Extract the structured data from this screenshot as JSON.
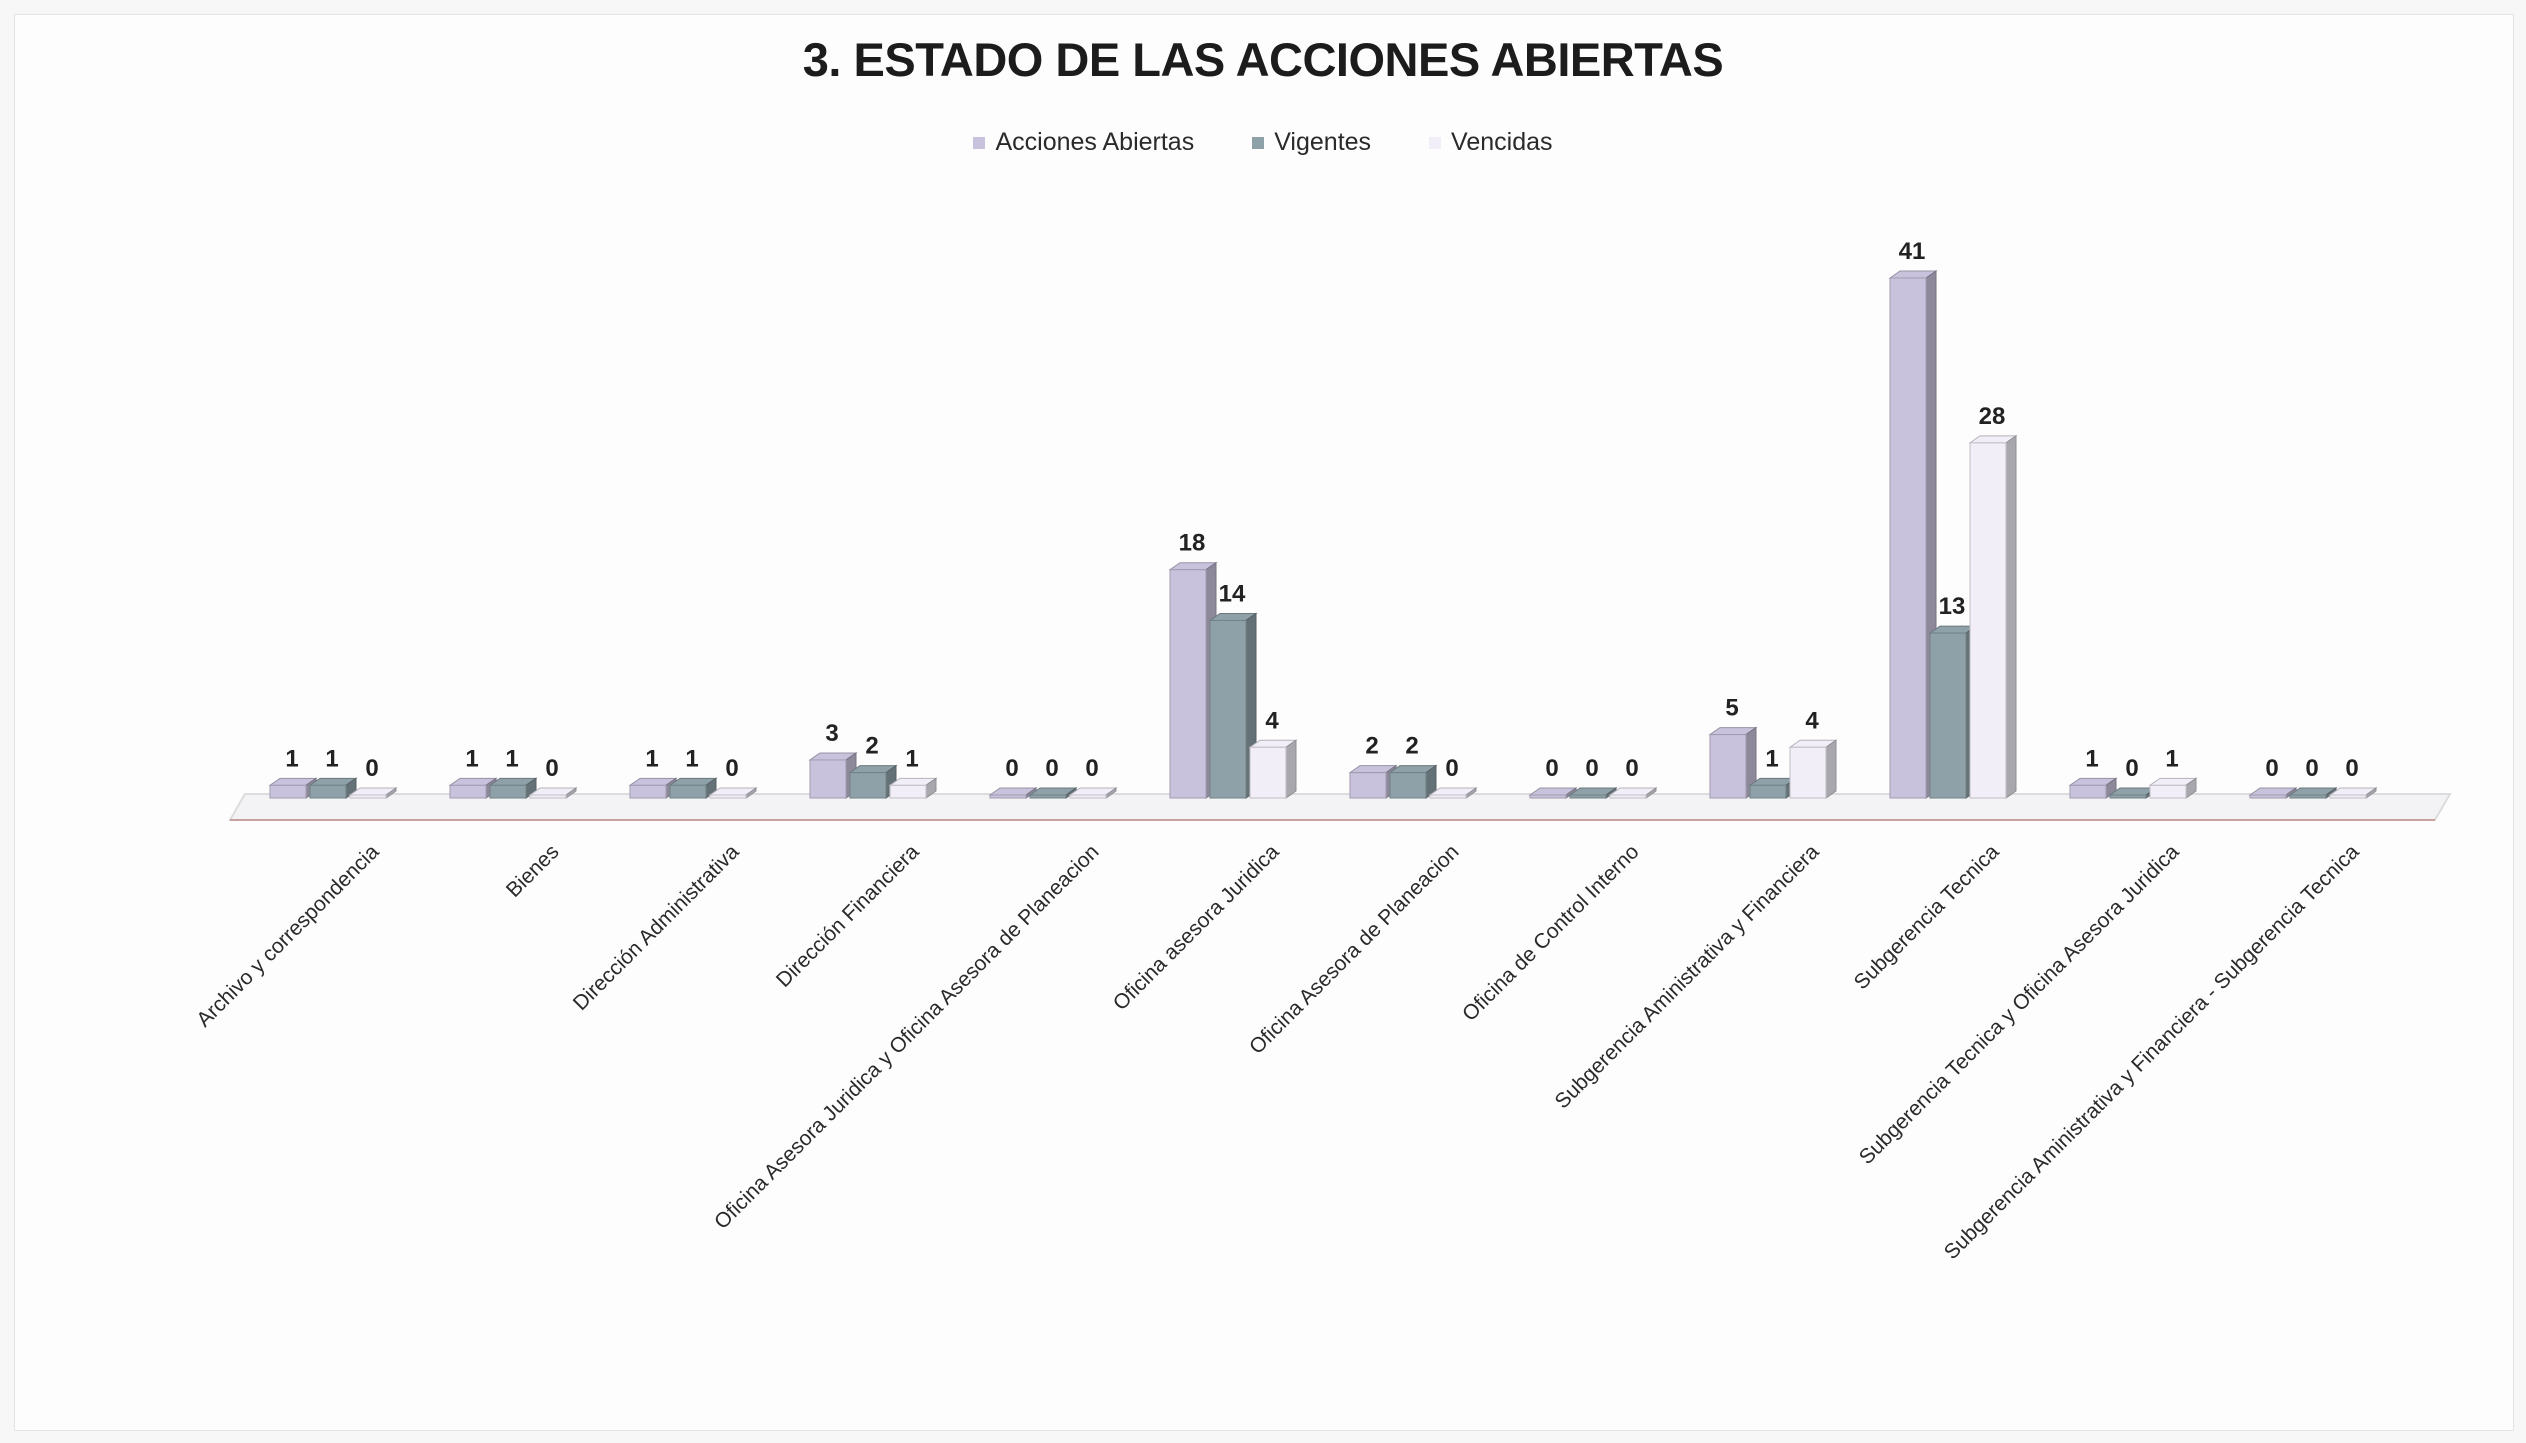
{
  "chart_data": {
    "type": "bar",
    "title": "3. ESTADO DE LAS ACCIONES ABIERTAS",
    "xlabel": "",
    "ylabel": "",
    "ylim": [
      0,
      45
    ],
    "grid": false,
    "legend_position": "top",
    "categories": [
      "Archivo y correspondencia",
      "Bienes",
      "Dirección Administrativa",
      "Dirección Financiera",
      "Oficina Asesora Juridica y Oficina Asesora de Planeacion",
      "Oficina asesora Juridica",
      "Oficina Asesora de Planeacion",
      "Oficina de Control Interno",
      "Subgerencia Aministrativa y Financiera",
      "Subgerencia Tecnica",
      "Subgerencia Tecnica y Oficina Asesora Juridica",
      "Subgerencia Aministrativa y Financiera  - Subgerencia Tecnica"
    ],
    "series": [
      {
        "name": "Acciones Abiertas",
        "color": "#c9c2dc",
        "values": [
          1,
          1,
          1,
          3,
          0,
          18,
          2,
          0,
          5,
          41,
          1,
          0
        ]
      },
      {
        "name": "Vigentes",
        "color": "#8fa1a8",
        "values": [
          1,
          1,
          1,
          2,
          0,
          14,
          2,
          0,
          1,
          13,
          0,
          0
        ]
      },
      {
        "name": "Vencidas",
        "color": "#f2eef8",
        "values": [
          0,
          0,
          0,
          1,
          0,
          4,
          0,
          0,
          4,
          28,
          1,
          0
        ]
      }
    ]
  }
}
